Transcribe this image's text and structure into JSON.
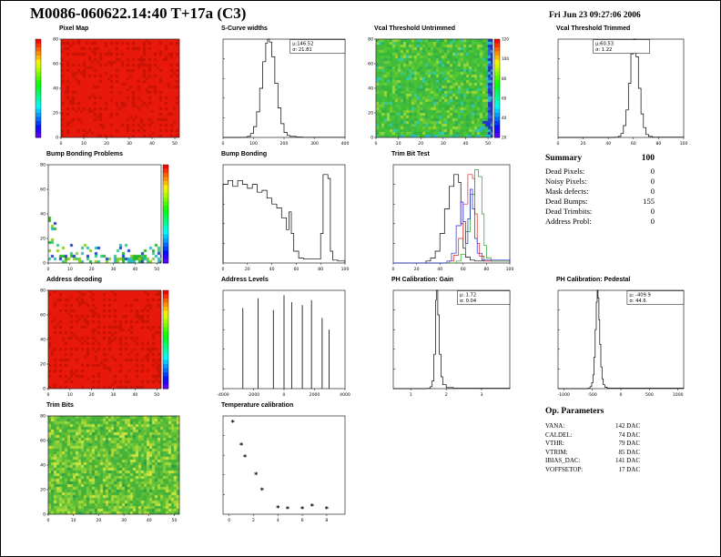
{
  "header": {
    "title": "M0086-060622.14:40 T+17a (C3)",
    "timestamp": "Fri Jun 23 09:27:06 2006"
  },
  "summary": {
    "title": "Summary",
    "score": "100",
    "rows": [
      {
        "label": "Dead Pixels:",
        "value": "0"
      },
      {
        "label": "Noisy Pixels:",
        "value": "0"
      },
      {
        "label": "Mask defects:",
        "value": "0"
      },
      {
        "label": "Dead Bumps:",
        "value": "155"
      },
      {
        "label": "Dead Trimbits:",
        "value": "0"
      },
      {
        "label": "Address Probl:",
        "value": "0"
      }
    ]
  },
  "op_parameters": {
    "title": "Op. Parameters",
    "rows": [
      {
        "label": "VANA:",
        "value": "142 DAC"
      },
      {
        "label": "CALDEL:",
        "value": "74 DAC"
      },
      {
        "label": "VTHR:",
        "value": "79 DAC"
      },
      {
        "label": "VTRIM:",
        "value": "85 DAC"
      },
      {
        "label": "IBIAS_DAC:",
        "value": "141 DAC"
      },
      {
        "label": "VOFFSETOP:",
        "value": "17 DAC"
      }
    ]
  },
  "chart_data": [
    {
      "id": "pixel-map",
      "type": "heatmap",
      "title": "Pixel Map",
      "style": "solid-red",
      "seed": 11,
      "xrange": [
        0,
        52
      ],
      "xticks": [
        0,
        10,
        20,
        30,
        40,
        50
      ],
      "yrange": [
        0,
        80
      ],
      "yticks": [
        0,
        20,
        40,
        60,
        80
      ],
      "colorbar": {
        "position": "left",
        "labels": []
      }
    },
    {
      "id": "scurve-widths",
      "type": "histogram",
      "title": "S-Curve widths",
      "color": "#000000",
      "xrange": [
        0,
        400
      ],
      "xticks": [
        0,
        100,
        200,
        300,
        400
      ],
      "stats": {
        "lines": [
          "μ:146.52",
          "σ: 21.81"
        ],
        "xfrac": 0.55
      },
      "points": [
        [
          60,
          0.001
        ],
        [
          80,
          0.01
        ],
        [
          90,
          0.04
        ],
        [
          100,
          0.11
        ],
        [
          110,
          0.26
        ],
        [
          120,
          0.5
        ],
        [
          130,
          0.77
        ],
        [
          140,
          0.96
        ],
        [
          146,
          1.0
        ],
        [
          152,
          0.97
        ],
        [
          160,
          0.82
        ],
        [
          170,
          0.55
        ],
        [
          180,
          0.3
        ],
        [
          190,
          0.14
        ],
        [
          200,
          0.05
        ],
        [
          210,
          0.02
        ],
        [
          220,
          0.01
        ],
        [
          240,
          0.004
        ],
        [
          260,
          0.002
        ]
      ]
    },
    {
      "id": "vcal-threshold-untrimmed",
      "type": "heatmap",
      "title": "Vcal Threshold Untrimmed",
      "style": "green-threshold",
      "seed": 22,
      "xrange": [
        0,
        52
      ],
      "xticks": [
        0,
        10,
        20,
        30,
        40,
        50
      ],
      "yrange": [
        0,
        80
      ],
      "yticks": [
        0,
        20,
        40,
        60,
        80
      ],
      "colorbar": {
        "position": "right",
        "labels": [
          120,
          100,
          80,
          60,
          40,
          20
        ]
      }
    },
    {
      "id": "vcal-threshold-trimmed",
      "type": "histogram",
      "title": "Vcal Threshold Trimmed",
      "color": "#000000",
      "xrange": [
        0,
        100
      ],
      "xticks": [
        0,
        20,
        40,
        60,
        80,
        100
      ],
      "stats": {
        "lines": [
          "μ:60.53",
          "σ: 1.22"
        ],
        "xfrac": 0.28
      },
      "points": [
        [
          45,
          0.003
        ],
        [
          48,
          0.01
        ],
        [
          50,
          0.04
        ],
        [
          52,
          0.12
        ],
        [
          54,
          0.28
        ],
        [
          56,
          0.55
        ],
        [
          58,
          0.85
        ],
        [
          60,
          1.0
        ],
        [
          62,
          0.82
        ],
        [
          64,
          0.5
        ],
        [
          66,
          0.24
        ],
        [
          68,
          0.1
        ],
        [
          70,
          0.03
        ],
        [
          72,
          0.01
        ],
        [
          75,
          0.003
        ]
      ]
    },
    {
      "id": "bump-bonding-problems",
      "type": "heatmap",
      "title": "Bump Bonding Problems",
      "style": "white-specks",
      "seed": 33,
      "xrange": [
        0,
        52
      ],
      "xticks": [
        0,
        10,
        20,
        30,
        40,
        50
      ],
      "yrange": [
        0,
        80
      ],
      "yticks": [
        0,
        20,
        40,
        60,
        80
      ],
      "colorbar": {
        "position": "right",
        "labels": []
      }
    },
    {
      "id": "bump-bonding",
      "type": "histogram",
      "title": "Bump Bonding",
      "color": "#000000",
      "xrange": [
        0,
        100
      ],
      "xticks": [
        0,
        20,
        40,
        60,
        80,
        100
      ],
      "points": [
        [
          0,
          0.8
        ],
        [
          4,
          0.84
        ],
        [
          8,
          0.78
        ],
        [
          12,
          0.84
        ],
        [
          16,
          0.8
        ],
        [
          20,
          0.76
        ],
        [
          24,
          0.8
        ],
        [
          28,
          0.72
        ],
        [
          32,
          0.74
        ],
        [
          36,
          0.66
        ],
        [
          40,
          0.6
        ],
        [
          44,
          0.56
        ],
        [
          48,
          0.46
        ],
        [
          52,
          0.34
        ],
        [
          54,
          0.52
        ],
        [
          56,
          0.3
        ],
        [
          58,
          0.12
        ],
        [
          62,
          0.05
        ],
        [
          66,
          0.04
        ],
        [
          70,
          0.04
        ],
        [
          74,
          0.04
        ],
        [
          78,
          0.04
        ],
        [
          80,
          0.3
        ],
        [
          82,
          0.9
        ],
        [
          86,
          0.86
        ],
        [
          88,
          0.12
        ],
        [
          90,
          0.03
        ],
        [
          94,
          0.02
        ],
        [
          100,
          0.01
        ]
      ]
    },
    {
      "id": "trim-bit-test",
      "type": "multi-histogram",
      "title": "Trim Bit Test",
      "xrange": [
        0,
        100
      ],
      "xticks": [
        0,
        20,
        40,
        60,
        80,
        100
      ],
      "series": [
        {
          "name": "series-black",
          "color": "#000000",
          "points": [
            [
              28,
              0.02
            ],
            [
              32,
              0.05
            ],
            [
              36,
              0.12
            ],
            [
              40,
              0.3
            ],
            [
              44,
              0.55
            ],
            [
              48,
              0.78
            ],
            [
              52,
              0.9
            ],
            [
              56,
              0.82
            ],
            [
              58,
              0.4
            ],
            [
              60,
              0.15
            ],
            [
              62,
              0.06
            ],
            [
              66,
              0.03
            ],
            [
              70,
              0.02
            ]
          ]
        },
        {
          "name": "series-red",
          "color": "#dd2222",
          "points": [
            [
              48,
              0.02
            ],
            [
              52,
              0.08
            ],
            [
              56,
              0.25
            ],
            [
              60,
              0.6
            ],
            [
              64,
              0.9
            ],
            [
              68,
              0.86
            ],
            [
              70,
              0.5
            ],
            [
              72,
              0.2
            ],
            [
              74,
              0.07
            ],
            [
              78,
              0.02
            ]
          ]
        },
        {
          "name": "series-green",
          "color": "#22a022",
          "points": [
            [
              54,
              0.02
            ],
            [
              58,
              0.09
            ],
            [
              62,
              0.32
            ],
            [
              66,
              0.7
            ],
            [
              70,
              0.95
            ],
            [
              73,
              0.88
            ],
            [
              76,
              0.5
            ],
            [
              78,
              0.18
            ],
            [
              80,
              0.05
            ],
            [
              84,
              0.02
            ]
          ]
        },
        {
          "name": "series-blue",
          "color": "#2222cc",
          "points": [
            [
              46,
              0.02
            ],
            [
              50,
              0.1
            ],
            [
              54,
              0.38
            ],
            [
              58,
              0.62
            ],
            [
              60,
              0.42
            ],
            [
              62,
              0.2
            ],
            [
              64,
              0.45
            ],
            [
              66,
              0.75
            ],
            [
              68,
              0.55
            ],
            [
              70,
              0.25
            ],
            [
              72,
              0.1
            ],
            [
              76,
              0.03
            ]
          ]
        }
      ]
    },
    {
      "id": "address-decoding",
      "type": "heatmap",
      "title": "Address decoding",
      "style": "solid-red",
      "seed": 44,
      "xrange": [
        0,
        52
      ],
      "xticks": [
        0,
        10,
        20,
        30,
        40,
        50
      ],
      "yrange": [
        0,
        80
      ],
      "yticks": [
        0,
        20,
        40,
        60,
        80
      ],
      "colorbar": {
        "position": "right",
        "labels": []
      }
    },
    {
      "id": "address-levels",
      "type": "spikes",
      "title": "Address Levels",
      "color": "#000000",
      "xrange": [
        -4000,
        4000
      ],
      "xticks": [
        -4000,
        -2000,
        0,
        2000,
        4000
      ],
      "spikes": [
        [
          -2700,
          0.82
        ],
        [
          -1700,
          0.92
        ],
        [
          -700,
          0.8
        ],
        [
          0,
          0.95
        ],
        [
          500,
          0.88
        ],
        [
          1200,
          0.85
        ],
        [
          1800,
          0.9
        ],
        [
          2500,
          0.72
        ],
        [
          2950,
          0.6
        ]
      ]
    },
    {
      "id": "ph-calibration-gain",
      "type": "histogram",
      "title": "PH Calibration: Gain",
      "color": "#000000",
      "xrange": [
        0.5,
        3.8
      ],
      "xticks": [
        1,
        2,
        3
      ],
      "stats": {
        "lines": [
          "μ: 1.72",
          "σ: 0.04"
        ],
        "xfrac": 0.55
      },
      "points": [
        [
          1.45,
          0.003
        ],
        [
          1.55,
          0.02
        ],
        [
          1.6,
          0.08
        ],
        [
          1.65,
          0.35
        ],
        [
          1.7,
          0.9
        ],
        [
          1.72,
          1.0
        ],
        [
          1.76,
          0.75
        ],
        [
          1.8,
          0.35
        ],
        [
          1.85,
          0.12
        ],
        [
          1.9,
          0.04
        ],
        [
          2.0,
          0.01
        ],
        [
          2.2,
          0.004
        ]
      ]
    },
    {
      "id": "ph-calibration-pedestal",
      "type": "histogram",
      "title": "PH Calibration: Pedestal",
      "color": "#000000",
      "xrange": [
        -1100,
        1100
      ],
      "xticks": [
        -1000,
        -500,
        0,
        500,
        1000
      ],
      "stats": {
        "lines": [
          "μ: -409.9",
          "σ: 44.6"
        ],
        "xfrac": 0.55
      },
      "points": [
        [
          -580,
          0.004
        ],
        [
          -540,
          0.02
        ],
        [
          -510,
          0.06
        ],
        [
          -490,
          0.14
        ],
        [
          -470,
          0.32
        ],
        [
          -450,
          0.6
        ],
        [
          -430,
          0.88
        ],
        [
          -415,
          1.0
        ],
        [
          -400,
          0.92
        ],
        [
          -385,
          0.7
        ],
        [
          -370,
          0.45
        ],
        [
          -350,
          0.22
        ],
        [
          -330,
          0.1
        ],
        [
          -310,
          0.04
        ],
        [
          -280,
          0.015
        ],
        [
          -240,
          0.005
        ]
      ]
    },
    {
      "id": "trim-bits",
      "type": "heatmap",
      "title": "Trim Bits",
      "style": "trim-noise",
      "seed": 55,
      "xrange": [
        0,
        52
      ],
      "xticks": [
        0,
        10,
        20,
        30,
        40,
        50
      ],
      "yrange": [
        0,
        80
      ],
      "yticks": [
        0,
        20,
        40,
        60,
        80
      ]
    },
    {
      "id": "temperature-calibration",
      "type": "scatter",
      "title": "Temperature calibration",
      "marker": "asterisk",
      "color": "#000000",
      "xrange": [
        -0.5,
        9.5
      ],
      "xticks": [
        0,
        2,
        4,
        6,
        8
      ],
      "points": [
        [
          0.3,
          0.93
        ],
        [
          1.0,
          0.7
        ],
        [
          1.3,
          0.58
        ],
        [
          2.2,
          0.4
        ],
        [
          2.7,
          0.24
        ],
        [
          4.0,
          0.06
        ],
        [
          4.8,
          0.05
        ],
        [
          6.0,
          0.05
        ],
        [
          6.8,
          0.08
        ],
        [
          8.0,
          0.05
        ]
      ]
    }
  ]
}
